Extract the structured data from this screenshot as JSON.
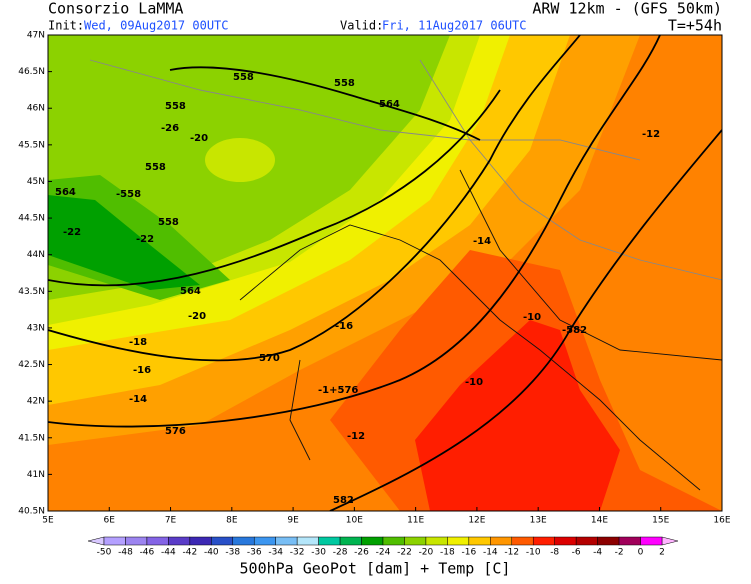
{
  "header": {
    "title": "Consorzio LaMMA",
    "model": "ARW 12km - (GFS 50km)",
    "init_label": "Init:",
    "init": "Wed, 09Aug2017 00UTC",
    "valid_label": "Valid:",
    "valid": "Fri, 11Aug2017 06UTC",
    "lead": "T=+54h"
  },
  "map": {
    "lat_labels": [
      "47N",
      "46.5N",
      "46N",
      "45.5N",
      "45N",
      "44.5N",
      "44N",
      "43.5N",
      "43N",
      "42.5N",
      "42N",
      "41.5N",
      "41N",
      "40.5N"
    ],
    "lon_labels": [
      "5E",
      "6E",
      "7E",
      "8E",
      "9E",
      "10E",
      "11E",
      "12E",
      "13E",
      "14E",
      "15E",
      "16E"
    ],
    "contour_labels": [
      "558",
      "558",
      "564",
      "558",
      "-26",
      "-20",
      "558",
      "564",
      "-558",
      "558",
      "-22",
      "-22",
      "564",
      "-20",
      "-18",
      "-16",
      "570",
      "-14",
      "-1+576",
      "576",
      "-12",
      "-10",
      "582",
      "-16",
      "-14",
      "-12",
      "-10",
      "-582"
    ]
  },
  "colorbar": {
    "labels": [
      "-50",
      "-48",
      "-46",
      "-44",
      "-42",
      "-40",
      "-38",
      "-36",
      "-34",
      "-32",
      "-30",
      "-28",
      "-26",
      "-24",
      "-22",
      "-20",
      "-18",
      "-16",
      "-14",
      "-12",
      "-10",
      "-8",
      "-6",
      "-4",
      "-2",
      "0",
      "2"
    ],
    "colors": [
      "#b4a0ff",
      "#9c84f0",
      "#8464e6",
      "#5a3cc8",
      "#3c28b4",
      "#2850c8",
      "#2878dc",
      "#3c96f0",
      "#78bef5",
      "#b4e6fa",
      "#00c8a0",
      "#00b450",
      "#00a000",
      "#50be00",
      "#8cd200",
      "#c8e600",
      "#f0f000",
      "#ffc800",
      "#ff9600",
      "#ff5a00",
      "#ff1e00",
      "#dc0000",
      "#b40000",
      "#8c0000",
      "#a0005a",
      "#ff00ff"
    ],
    "low_arrow_color": "#d8c8ff",
    "high_arrow_color": "#ffb4ff"
  },
  "footer": "500hPa GeoPot [dam] + Temp [C]"
}
